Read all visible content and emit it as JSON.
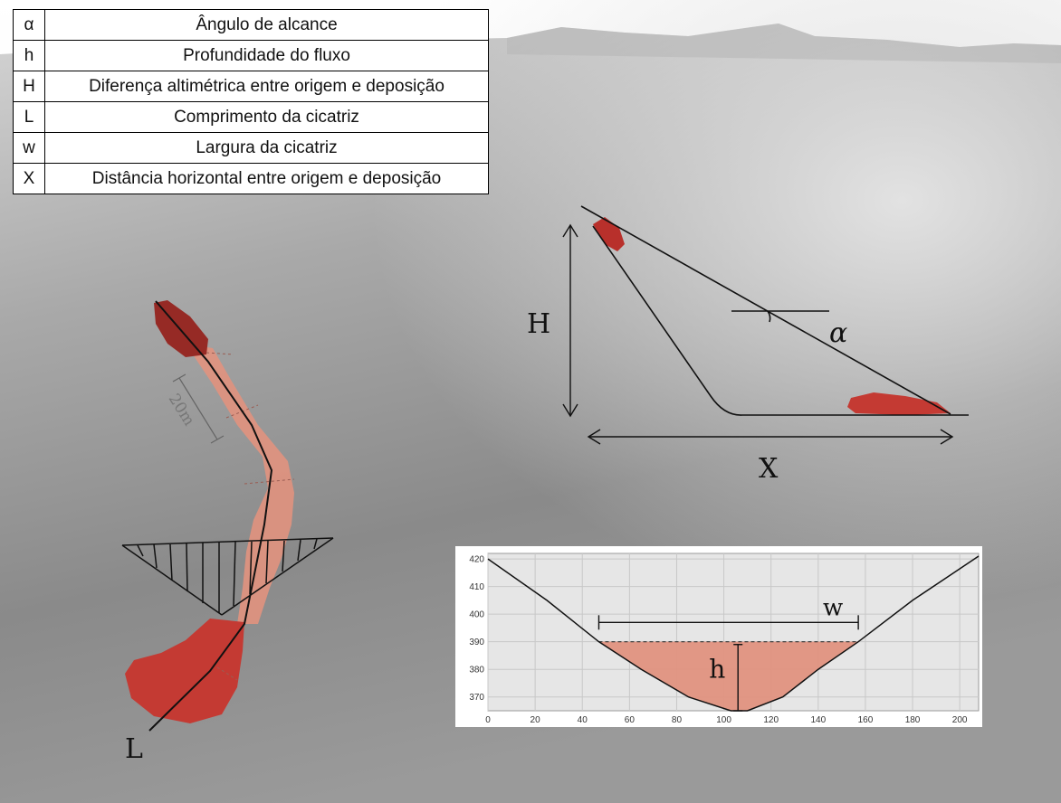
{
  "legend": {
    "rows": [
      {
        "symbol": "α",
        "description": "Ângulo de alcance"
      },
      {
        "symbol": "h",
        "description": "Profundidade do fluxo"
      },
      {
        "symbol": "H",
        "description": "Diferença altimétrica entre origem e deposição"
      },
      {
        "symbol": "L",
        "description": "Comprimento da cicatriz"
      },
      {
        "symbol": "w",
        "description": "Largura da cicatriz"
      },
      {
        "symbol": "X",
        "description": "Distância horizontal entre origem e deposição"
      }
    ]
  },
  "map": {
    "scale_label": "20m",
    "length_label": "L"
  },
  "triangle": {
    "height_label": "H",
    "distance_label": "X",
    "angle_label": "α"
  },
  "colors": {
    "scar_light": "#e0927f",
    "scar_dark": "#c43a33",
    "scar_darkest": "#962a25"
  },
  "chart_data": {
    "type": "line",
    "x_ticks": [
      0,
      20,
      40,
      60,
      80,
      100,
      120,
      140,
      160,
      180,
      200
    ],
    "y_ticks": [
      370,
      380,
      390,
      400,
      410,
      420
    ],
    "xlim": [
      0,
      208
    ],
    "ylim": [
      365,
      422
    ],
    "grid": true,
    "terrain_profile": {
      "x": [
        0,
        25,
        47,
        65,
        85,
        103,
        110,
        125,
        140,
        157,
        180,
        208
      ],
      "y": [
        420,
        405,
        390,
        380,
        370,
        365,
        365,
        370,
        380,
        390,
        405,
        421
      ]
    },
    "flow_top_y": 390,
    "annotations": {
      "width_label": "w",
      "depth_label": "h",
      "width_span": [
        47,
        157
      ],
      "width_line_y": 397,
      "depth_x": 106,
      "depth_span": [
        365,
        389
      ]
    }
  }
}
